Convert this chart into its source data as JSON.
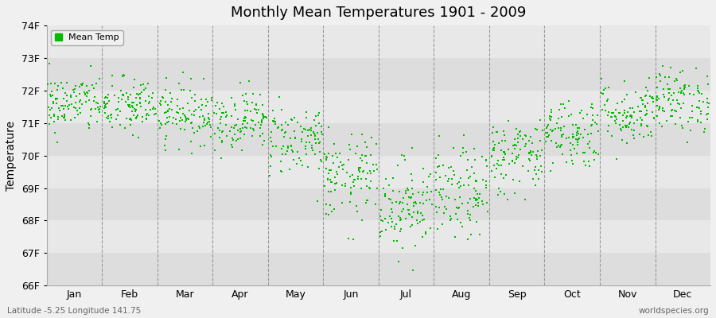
{
  "title": "Monthly Mean Temperatures 1901 - 2009",
  "ylabel": "Temperature",
  "xlabel_labels": [
    "Jan",
    "Feb",
    "Mar",
    "Apr",
    "May",
    "Jun",
    "Jul",
    "Aug",
    "Sep",
    "Oct",
    "Nov",
    "Dec"
  ],
  "ylim": [
    66,
    74
  ],
  "ytick_labels": [
    "66F",
    "67F",
    "68F",
    "69F",
    "70F",
    "71F",
    "72F",
    "73F",
    "74F"
  ],
  "ytick_values": [
    66,
    67,
    68,
    69,
    70,
    71,
    72,
    73,
    74
  ],
  "dot_color": "#00bb00",
  "plot_bg_color": "#e8e8e8",
  "fig_bg_color": "#f0f0f0",
  "band_color_dark": "#dddddd",
  "band_color_light": "#e8e8e8",
  "legend_label": "Mean Temp",
  "footer_left": "Latitude -5.25 Longitude 141.75",
  "footer_right": "worldspecies.org",
  "years": 109,
  "monthly_means": [
    71.6,
    71.5,
    71.3,
    71.1,
    70.5,
    69.3,
    68.5,
    68.8,
    70.0,
    70.7,
    71.3,
    71.7
  ],
  "monthly_stds": [
    0.45,
    0.45,
    0.45,
    0.45,
    0.55,
    0.65,
    0.7,
    0.7,
    0.6,
    0.55,
    0.5,
    0.5
  ],
  "seed": 42
}
